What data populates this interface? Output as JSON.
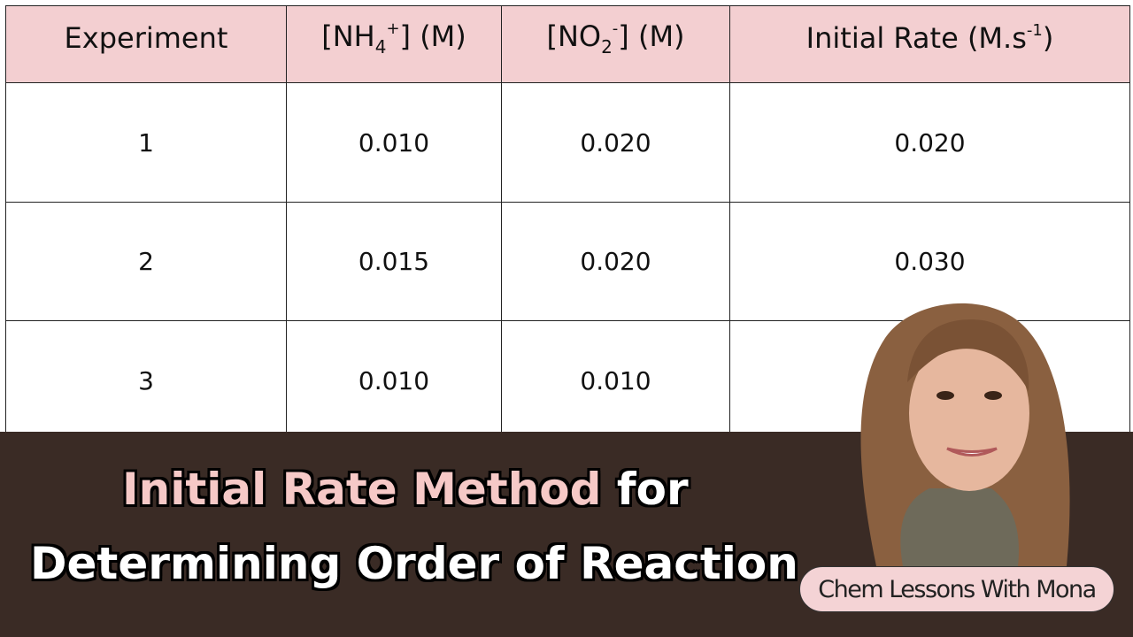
{
  "table": {
    "headers": [
      [
        {
          "text": "Experiment"
        }
      ],
      [
        {
          "text": "[NH"
        },
        {
          "text": "4",
          "pos": "sub"
        },
        {
          "text": "+",
          "pos": "sup"
        },
        {
          "text": "]   (M)"
        }
      ],
      [
        {
          "text": "[NO"
        },
        {
          "text": "2",
          "pos": "sub"
        },
        {
          "text": "-",
          "pos": "sup"
        },
        {
          "text": "]   (M)"
        }
      ],
      [
        {
          "text": "Initial Rate (M.s"
        },
        {
          "text": "-1",
          "pos": "sup"
        },
        {
          "text": ")"
        }
      ]
    ],
    "rows": [
      [
        "1",
        "0.010",
        "0.020",
        "0.020"
      ],
      [
        "2",
        "0.015",
        "0.020",
        "0.030"
      ],
      [
        "3",
        "0.010",
        "0.010"
      ]
    ]
  },
  "banner": {
    "title_highlight": "Initial Rate Method",
    "title_rest": "for",
    "title_line2": "Determining Order of Reaction"
  },
  "badge": {
    "text": "Chem Lessons With Mona"
  }
}
